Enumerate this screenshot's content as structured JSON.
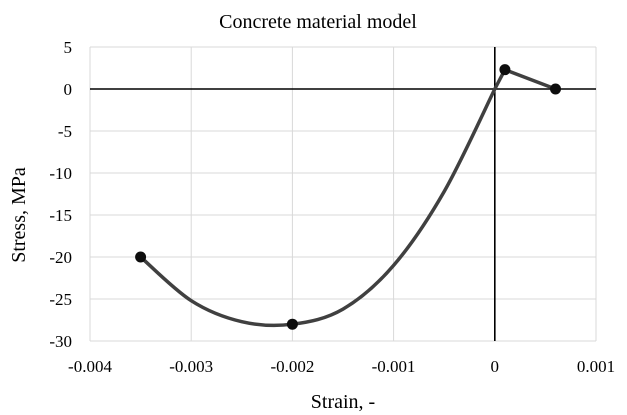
{
  "chart_data": {
    "type": "line",
    "title": "Concrete material model",
    "xlabel": "Strain, -",
    "ylabel": "Stress, MPa",
    "xlim": [
      -0.004,
      0.001
    ],
    "ylim": [
      -30,
      5
    ],
    "x_ticks": [
      -0.004,
      -0.003,
      -0.002,
      -0.001,
      0,
      0.001
    ],
    "x_tick_labels": [
      "-0.004",
      "-0.003",
      "-0.002",
      "-0.001",
      "0",
      "0.001"
    ],
    "y_ticks": [
      5,
      0,
      -5,
      -10,
      -15,
      -20,
      -25,
      -30
    ],
    "y_tick_labels": [
      "5",
      "0",
      "-5",
      "-10",
      "-15",
      "-20",
      "-25",
      "-30"
    ],
    "grid": true,
    "legend": false,
    "line_color": "#404040",
    "marker_color": "#0d0d0d",
    "series": [
      {
        "curve_points": [
          [
            -0.0035,
            -20.0
          ],
          [
            -0.003,
            -25.2
          ],
          [
            -0.0025,
            -27.7
          ],
          [
            -0.002,
            -28.0
          ],
          [
            -0.0015,
            -26.2
          ],
          [
            -0.001,
            -21.0
          ],
          [
            -0.0005,
            -12.2
          ],
          [
            0.0,
            0.0
          ],
          [
            0.0001,
            2.3
          ],
          [
            0.0006,
            0.0
          ]
        ],
        "markers": [
          [
            -0.0035,
            -20.0
          ],
          [
            -0.002,
            -28.0
          ],
          [
            0.0001,
            2.3
          ],
          [
            0.0006,
            0.0
          ]
        ]
      }
    ]
  }
}
